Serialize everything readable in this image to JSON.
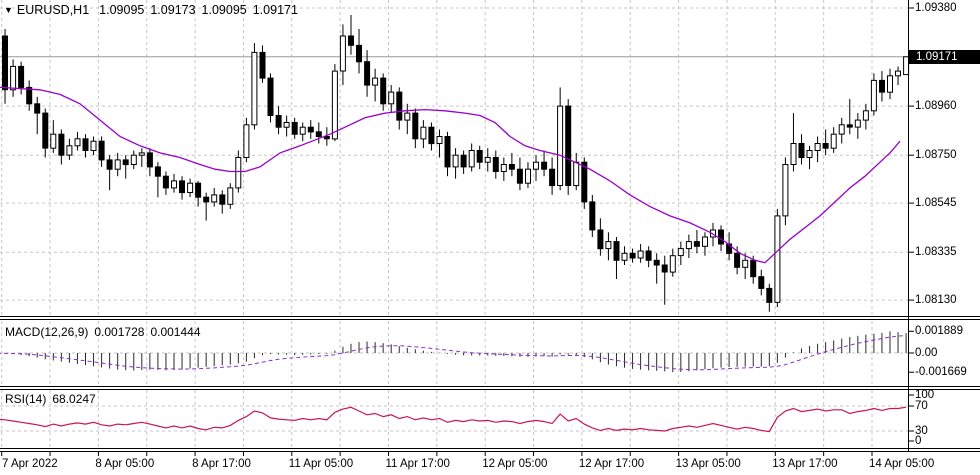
{
  "header": {
    "dropdown_icon": "▼",
    "symbol": "EURUSD,H1",
    "ohlc": {
      "open": "1.09095",
      "high": "1.09173",
      "low": "1.09095",
      "close": "1.09171"
    }
  },
  "price_axis": {
    "ticks": [
      "1.09380",
      "1.08960",
      "1.08750",
      "1.08545",
      "1.08335",
      "1.08130"
    ],
    "current": "1.09171"
  },
  "time_axis": {
    "labels": [
      "7 Apr 2022",
      "8 Apr 05:00",
      "8 Apr 17:00",
      "11 Apr 05:00",
      "11 Apr 17:00",
      "12 Apr 05:00",
      "12 Apr 17:00",
      "13 Apr 05:00",
      "13 Apr 17:00",
      "14 Apr 05:00"
    ]
  },
  "macd_panel": {
    "name": "MACD(12,26,9)",
    "main": "0.001728",
    "signal": "0.001444",
    "ticks": [
      "0.001889",
      "0.00",
      "-0.001669"
    ]
  },
  "rsi_panel": {
    "name": "RSI(14)",
    "value": "68.0247",
    "ticks": [
      "100",
      "70",
      "30",
      "0"
    ]
  },
  "colors": {
    "candle_up": "#ffffff",
    "candle_down": "#000000",
    "candle_border": "#000000",
    "ma": "#9900cc",
    "macd_bar": "#2a2a2a",
    "macd_signal": "#8833cc",
    "rsi": "#c81458",
    "grid": "#c6c6c6",
    "price_line": "#9a9a9a",
    "divider": "#000000",
    "tag_bg": "#000000",
    "tag_text": "#ffffff"
  },
  "chart_data": [
    {
      "type": "candlestick",
      "title": "EURUSD,H1",
      "x_labels": [
        "7 Apr 2022",
        "8 Apr 05:00",
        "8 Apr 17:00",
        "11 Apr 05:00",
        "11 Apr 17:00",
        "12 Apr 05:00",
        "12 Apr 17:00",
        "13 Apr 05:00",
        "13 Apr 17:00",
        "14 Apr 05:00"
      ],
      "price_ticks": [
        1.0938,
        1.0896,
        1.0875,
        1.08545,
        1.08335,
        1.0813
      ],
      "current_price": 1.09171,
      "ylim": [
        1.0808,
        1.0938
      ],
      "candles": [
        [
          1.093,
          1.0932,
          1.0906,
          1.0912
        ],
        [
          1.0926,
          1.0929,
          1.0897,
          1.0903
        ],
        [
          1.0903,
          1.0916,
          1.09,
          1.0913
        ],
        [
          1.0913,
          1.0915,
          1.0901,
          1.0904
        ],
        [
          1.0904,
          1.0907,
          1.0894,
          1.0897
        ],
        [
          1.0897,
          1.09,
          1.0884,
          1.0893
        ],
        [
          1.0893,
          1.0895,
          1.0874,
          1.0878
        ],
        [
          1.0878,
          1.089,
          1.0876,
          1.0884
        ],
        [
          1.0884,
          1.0886,
          1.0871,
          1.0875
        ],
        [
          1.0875,
          1.0882,
          1.0873,
          1.0879
        ],
        [
          1.0879,
          1.0885,
          1.0877,
          1.0882
        ],
        [
          1.0882,
          1.0884,
          1.0874,
          1.0877
        ],
        [
          1.0877,
          1.0883,
          1.0875,
          1.0881
        ],
        [
          1.0881,
          1.0883,
          1.087,
          1.0873
        ],
        [
          1.0873,
          1.0875,
          1.086,
          1.0869
        ],
        [
          1.0869,
          1.0876,
          1.0866,
          1.0873
        ],
        [
          1.0873,
          1.0875,
          1.0865,
          1.0871
        ],
        [
          1.0871,
          1.0877,
          1.0869,
          1.0875
        ],
        [
          1.0875,
          1.0878,
          1.087,
          1.0876
        ],
        [
          1.0876,
          1.0878,
          1.0866,
          1.087
        ],
        [
          1.087,
          1.0872,
          1.0857,
          1.0866
        ],
        [
          1.0866,
          1.0868,
          1.0858,
          1.0861
        ],
        [
          1.0861,
          1.0867,
          1.0859,
          1.0864
        ],
        [
          1.0864,
          1.0866,
          1.0856,
          1.0859
        ],
        [
          1.0859,
          1.0865,
          1.0857,
          1.0863
        ],
        [
          1.0863,
          1.0864,
          1.0853,
          1.0857
        ],
        [
          1.0857,
          1.0859,
          1.0847,
          1.0855
        ],
        [
          1.0855,
          1.0861,
          1.0853,
          1.0858
        ],
        [
          1.0858,
          1.086,
          1.085,
          1.0854
        ],
        [
          1.0854,
          1.0863,
          1.0852,
          1.0861
        ],
        [
          1.0861,
          1.0877,
          1.0859,
          1.0874
        ],
        [
          1.0874,
          1.0891,
          1.0872,
          1.0888
        ],
        [
          1.0888,
          1.0923,
          1.0886,
          1.0919
        ],
        [
          1.0919,
          1.0922,
          1.0906,
          1.0908
        ],
        [
          1.0908,
          1.091,
          1.0889,
          1.0892
        ],
        [
          1.0892,
          1.0896,
          1.0884,
          1.0887
        ],
        [
          1.0887,
          1.0892,
          1.0883,
          1.0889
        ],
        [
          1.0889,
          1.0891,
          1.0882,
          1.0884
        ],
        [
          1.0884,
          1.0889,
          1.0881,
          1.0887
        ],
        [
          1.0887,
          1.089,
          1.0882,
          1.0885
        ],
        [
          1.0885,
          1.0889,
          1.088,
          1.0883
        ],
        [
          1.0883,
          1.0887,
          1.0879,
          1.0882
        ],
        [
          1.0882,
          1.0914,
          1.0881,
          1.0911
        ],
        [
          1.0911,
          1.0931,
          1.0905,
          1.0926
        ],
        [
          1.0926,
          1.0935,
          1.0918,
          1.0922
        ],
        [
          1.0922,
          1.0929,
          1.091,
          1.0915
        ],
        [
          1.0915,
          1.092,
          1.09,
          1.0905
        ],
        [
          1.0905,
          1.0912,
          1.0898,
          1.0908
        ],
        [
          1.0908,
          1.091,
          1.0894,
          1.0897
        ],
        [
          1.0897,
          1.0905,
          1.0893,
          1.0902
        ],
        [
          1.0902,
          1.0904,
          1.0886,
          1.089
        ],
        [
          1.089,
          1.0897,
          1.0884,
          1.0893
        ],
        [
          1.0893,
          1.0895,
          1.0878,
          1.0882
        ],
        [
          1.0882,
          1.089,
          1.0878,
          1.0887
        ],
        [
          1.0887,
          1.0889,
          1.0877,
          1.088
        ],
        [
          1.088,
          1.0886,
          1.0874,
          1.0883
        ],
        [
          1.0883,
          1.0885,
          1.0866,
          1.087
        ],
        [
          1.087,
          1.0878,
          1.0865,
          1.0875
        ],
        [
          1.0875,
          1.0877,
          1.0867,
          1.087
        ],
        [
          1.087,
          1.088,
          1.0868,
          1.0877
        ],
        [
          1.0877,
          1.0879,
          1.0869,
          1.0872
        ],
        [
          1.0872,
          1.0878,
          1.0868,
          1.0874
        ],
        [
          1.0874,
          1.0877,
          1.0865,
          1.0868
        ],
        [
          1.0868,
          1.0874,
          1.0864,
          1.0871
        ],
        [
          1.0871,
          1.0876,
          1.0866,
          1.0869
        ],
        [
          1.0869,
          1.0874,
          1.086,
          1.0863
        ],
        [
          1.0863,
          1.0872,
          1.0861,
          1.0869
        ],
        [
          1.0869,
          1.0875,
          1.0864,
          1.0872
        ],
        [
          1.0872,
          1.0877,
          1.0866,
          1.0869
        ],
        [
          1.0869,
          1.0874,
          1.0858,
          1.0862
        ],
        [
          1.0862,
          1.0904,
          1.086,
          1.0896
        ],
        [
          1.0896,
          1.0899,
          1.0858,
          1.0862
        ],
        [
          1.0862,
          1.0876,
          1.086,
          1.0872
        ],
        [
          1.0872,
          1.0874,
          1.0852,
          1.0855
        ],
        [
          1.0855,
          1.0858,
          1.084,
          1.0843
        ],
        [
          1.0843,
          1.0848,
          1.0832,
          1.0835
        ],
        [
          1.0835,
          1.0842,
          1.083,
          1.0838
        ],
        [
          1.0838,
          1.084,
          1.0822,
          1.083
        ],
        [
          1.083,
          1.0836,
          1.0828,
          1.0833
        ],
        [
          1.0833,
          1.0835,
          1.0829,
          1.0831
        ],
        [
          1.0831,
          1.0837,
          1.0829,
          1.0834
        ],
        [
          1.0834,
          1.0836,
          1.0827,
          1.083
        ],
        [
          1.083,
          1.0833,
          1.082,
          1.0828
        ],
        [
          1.0828,
          1.0832,
          1.0811,
          1.0825
        ],
        [
          1.0825,
          1.0835,
          1.0823,
          1.0832
        ],
        [
          1.0832,
          1.0838,
          1.0828,
          1.0835
        ],
        [
          1.0835,
          1.0841,
          1.0831,
          1.0838
        ],
        [
          1.0838,
          1.0843,
          1.0833,
          1.0836
        ],
        [
          1.0836,
          1.0842,
          1.0832,
          1.084
        ],
        [
          1.084,
          1.0846,
          1.0836,
          1.0843
        ],
        [
          1.0843,
          1.0845,
          1.0834,
          1.0837
        ],
        [
          1.0837,
          1.0842,
          1.083,
          1.0833
        ],
        [
          1.0833,
          1.0836,
          1.0824,
          1.0827
        ],
        [
          1.0827,
          1.0833,
          1.0822,
          1.083
        ],
        [
          1.083,
          1.0832,
          1.082,
          1.0823
        ],
        [
          1.0823,
          1.0826,
          1.0815,
          1.0818
        ],
        [
          1.0818,
          1.082,
          1.0808,
          1.0812
        ],
        [
          1.0812,
          1.0852,
          1.081,
          1.0849
        ],
        [
          1.0849,
          1.0874,
          1.0845,
          1.0871
        ],
        [
          1.0871,
          1.0893,
          1.0868,
          1.088
        ],
        [
          1.088,
          1.0884,
          1.0871,
          1.0874
        ],
        [
          1.0874,
          1.0879,
          1.0869,
          1.0877
        ],
        [
          1.0877,
          1.0883,
          1.0872,
          1.088
        ],
        [
          1.088,
          1.0886,
          1.0875,
          1.0878
        ],
        [
          1.0878,
          1.0887,
          1.0876,
          1.0884
        ],
        [
          1.0884,
          1.0891,
          1.088,
          1.0888
        ],
        [
          1.0888,
          1.0899,
          1.0884,
          1.0887
        ],
        [
          1.0887,
          1.0893,
          1.0882,
          1.089
        ],
        [
          1.089,
          1.0897,
          1.0886,
          1.0894
        ],
        [
          1.0894,
          1.091,
          1.0892,
          1.0907
        ],
        [
          1.0907,
          1.0911,
          1.0898,
          1.0902
        ],
        [
          1.0902,
          1.0912,
          1.0899,
          1.0909
        ],
        [
          1.0909,
          1.0913,
          1.0905,
          1.0911
        ],
        [
          1.09095,
          1.09173,
          1.09095,
          1.09171
        ]
      ],
      "ma_line": [
        [
          0,
          1.0904
        ],
        [
          40,
          1.0903
        ],
        [
          60,
          1.0901
        ],
        [
          80,
          1.0897
        ],
        [
          100,
          1.089
        ],
        [
          120,
          1.0883
        ],
        [
          140,
          1.0879
        ],
        [
          160,
          1.0876
        ],
        [
          180,
          1.0874
        ],
        [
          200,
          1.0871
        ],
        [
          215,
          1.0869
        ],
        [
          230,
          1.0868
        ],
        [
          245,
          1.0868
        ],
        [
          260,
          1.087
        ],
        [
          280,
          1.0876
        ],
        [
          300,
          1.0879
        ],
        [
          312,
          1.0881
        ],
        [
          330,
          1.0884
        ],
        [
          345,
          1.0887
        ],
        [
          365,
          1.0891
        ],
        [
          385,
          1.0893
        ],
        [
          405,
          1.0894
        ],
        [
          425,
          1.08945
        ],
        [
          445,
          1.0894
        ],
        [
          465,
          1.0893
        ],
        [
          480,
          1.0892
        ],
        [
          495,
          1.0889
        ],
        [
          510,
          1.0883
        ],
        [
          525,
          1.0879
        ],
        [
          540,
          1.0877
        ],
        [
          560,
          1.0875
        ],
        [
          575,
          1.0872
        ],
        [
          590,
          1.0869
        ],
        [
          610,
          1.0864
        ],
        [
          630,
          1.0858
        ],
        [
          650,
          1.0853
        ],
        [
          670,
          1.0849
        ],
        [
          690,
          1.0846
        ],
        [
          710,
          1.0842
        ],
        [
          725,
          1.0838
        ],
        [
          740,
          1.0833
        ],
        [
          755,
          1.083
        ],
        [
          765,
          1.0829
        ],
        [
          775,
          1.0833
        ],
        [
          790,
          1.0839
        ],
        [
          805,
          1.0844
        ],
        [
          820,
          1.0849
        ],
        [
          835,
          1.0855
        ],
        [
          850,
          1.0861
        ],
        [
          865,
          1.0866
        ],
        [
          880,
          1.0872
        ],
        [
          890,
          1.0876
        ],
        [
          900,
          1.0881
        ]
      ]
    },
    {
      "type": "bar",
      "name": "MACD(12,26,9)",
      "main_display": 0.001728,
      "signal_display": 0.001444,
      "axis_ticks": [
        0.001889,
        0,
        -0.001669
      ],
      "values": [
        -3e-05,
        -5e-05,
        -0.0001,
        -0.00018,
        -0.00028,
        -0.0004,
        -0.00055,
        -0.00065,
        -0.00075,
        -0.00085,
        -0.00095,
        -0.00105,
        -0.00115,
        -0.00125,
        -0.00135,
        -0.00145,
        -0.0015,
        -0.00152,
        -0.00148,
        -0.00145,
        -0.00148,
        -0.0015,
        -0.00147,
        -0.00142,
        -0.00135,
        -0.00128,
        -0.0012,
        -0.00113,
        -0.00106,
        -0.001,
        -0.0009,
        -0.00075,
        -0.00045,
        -0.0002,
        -0.0001,
        -0.00012,
        -0.00015,
        -0.00018,
        -0.00015,
        -0.00012,
        -0.0001,
        -8e-05,
        0.0002,
        0.00055,
        0.0008,
        0.00095,
        0.001,
        0.00095,
        0.00085,
        0.00075,
        0.0006,
        0.00045,
        0.00032,
        0.0002,
        0.0001,
        2e-05,
        -8e-05,
        -0.00015,
        -0.0002,
        -0.00022,
        -0.00022,
        -0.00022,
        -0.00024,
        -0.00026,
        -0.00028,
        -0.00032,
        -0.00032,
        -0.0003,
        -0.00028,
        -0.00032,
        -0.00012,
        -0.00015,
        -0.0002,
        -0.00035,
        -0.00055,
        -0.0008,
        -0.001,
        -0.00115,
        -0.00128,
        -0.00138,
        -0.00145,
        -0.0015,
        -0.00155,
        -0.0016,
        -0.00167,
        -0.00164,
        -0.00158,
        -0.0015,
        -0.00142,
        -0.00133,
        -0.00126,
        -0.00122,
        -0.0012,
        -0.00118,
        -0.00117,
        -0.00118,
        -0.00115,
        -0.00085,
        -0.0004,
        5e-05,
        0.0004,
        0.00062,
        0.0008,
        0.00095,
        0.0011,
        0.00125,
        0.0014,
        0.0015,
        0.0016,
        0.00168,
        0.00175,
        0.001889,
        0.00181,
        0.001728
      ]
    },
    {
      "type": "line",
      "name": "RSI(14)",
      "current": 68.0247,
      "levels": [
        70,
        30
      ],
      "ylim": [
        0,
        100
      ],
      "values": [
        49,
        48,
        46,
        44,
        42,
        40,
        37,
        41,
        38,
        41,
        43,
        41,
        44,
        40,
        38,
        41,
        40,
        42,
        44,
        41,
        38,
        35,
        38,
        35,
        38,
        34,
        32,
        36,
        35,
        39,
        47,
        53,
        62,
        59,
        51,
        49,
        48,
        47,
        50,
        48,
        50,
        48,
        60,
        65,
        68,
        62,
        56,
        58,
        53,
        56,
        50,
        53,
        48,
        51,
        48,
        50,
        44,
        47,
        45,
        48,
        46,
        47,
        44,
        46,
        45,
        42,
        45,
        47,
        45,
        42,
        57,
        46,
        50,
        41,
        35,
        31,
        34,
        31,
        33,
        32,
        34,
        32,
        31,
        30,
        34,
        36,
        38,
        36,
        39,
        42,
        39,
        36,
        33,
        36,
        34,
        31,
        29,
        52,
        62,
        66,
        61,
        63,
        65,
        62,
        64,
        64,
        58,
        61,
        63,
        66,
        63,
        66,
        66,
        68.02
      ]
    }
  ]
}
